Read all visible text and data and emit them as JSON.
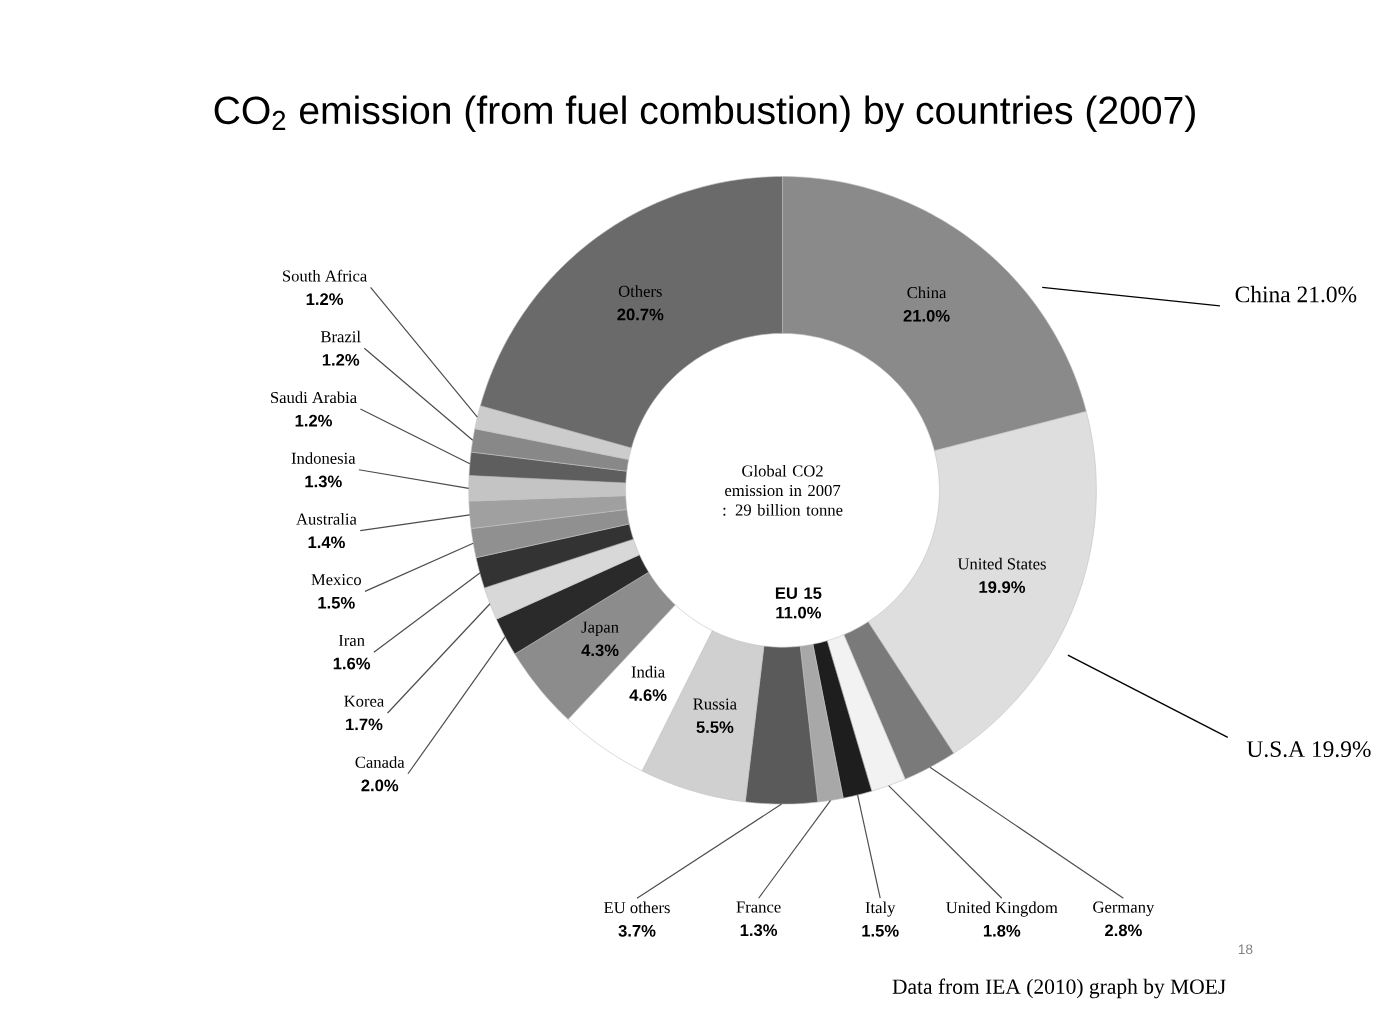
{
  "chart_data": {
    "type": "donut",
    "title": "CO$_{2}$ emission (from fuel combustion) by countries (2007)",
    "categories": [
      "China",
      "United States",
      "Germany",
      "United Kingdom",
      "Italy",
      "France",
      "EU others",
      "Russia",
      "India",
      "Japan",
      "Canada",
      "Korea",
      "Iran",
      "Mexico",
      "Australia",
      "Indonesia",
      "Saudi Arabia",
      "Brazil",
      "South Africa",
      "Others"
    ],
    "values": [
      21.0,
      19.9,
      2.8,
      1.8,
      1.5,
      1.3,
      3.7,
      5.5,
      4.6,
      4.3,
      2.0,
      1.7,
      1.6,
      1.5,
      1.4,
      1.3,
      1.2,
      1.2,
      1.2,
      20.7
    ],
    "value_labels": [
      "21.0%",
      "19.9%",
      "2.8%",
      "1.8%",
      "1.5%",
      "1.3%",
      "3.7%",
      "5.5%",
      "4.6%",
      "4.3%",
      "2.0%",
      "1.7%",
      "1.6%",
      "1.5%",
      "1.4%",
      "1.3%",
      "1.2%",
      "1.2%",
      "1.2%",
      "20.7%"
    ],
    "colors": [
      "#8a8a8a",
      "#dedede",
      "#7a7a7a",
      "#f2f2f2",
      "#1e1e1e",
      "#a8a8a8",
      "#5a5a5a",
      "#d0d0d0",
      "#ffffff",
      "#8c8c8c",
      "#2a2a2a",
      "#d8d8d8",
      "#333333",
      "#909090",
      "#a0a0a0",
      "#c4c4c4",
      "#5e5e5e",
      "#888888",
      "#cccccc",
      "#6a6a6a"
    ],
    "annotations": [
      "Global CO2 emission in 2007 : 29 billion tonne",
      "EU 15 11.0%",
      "China 21.0%",
      "U.S.A 19.9%",
      "Data from IEA (2010) graph by MOEJ",
      "18"
    ]
  }
}
